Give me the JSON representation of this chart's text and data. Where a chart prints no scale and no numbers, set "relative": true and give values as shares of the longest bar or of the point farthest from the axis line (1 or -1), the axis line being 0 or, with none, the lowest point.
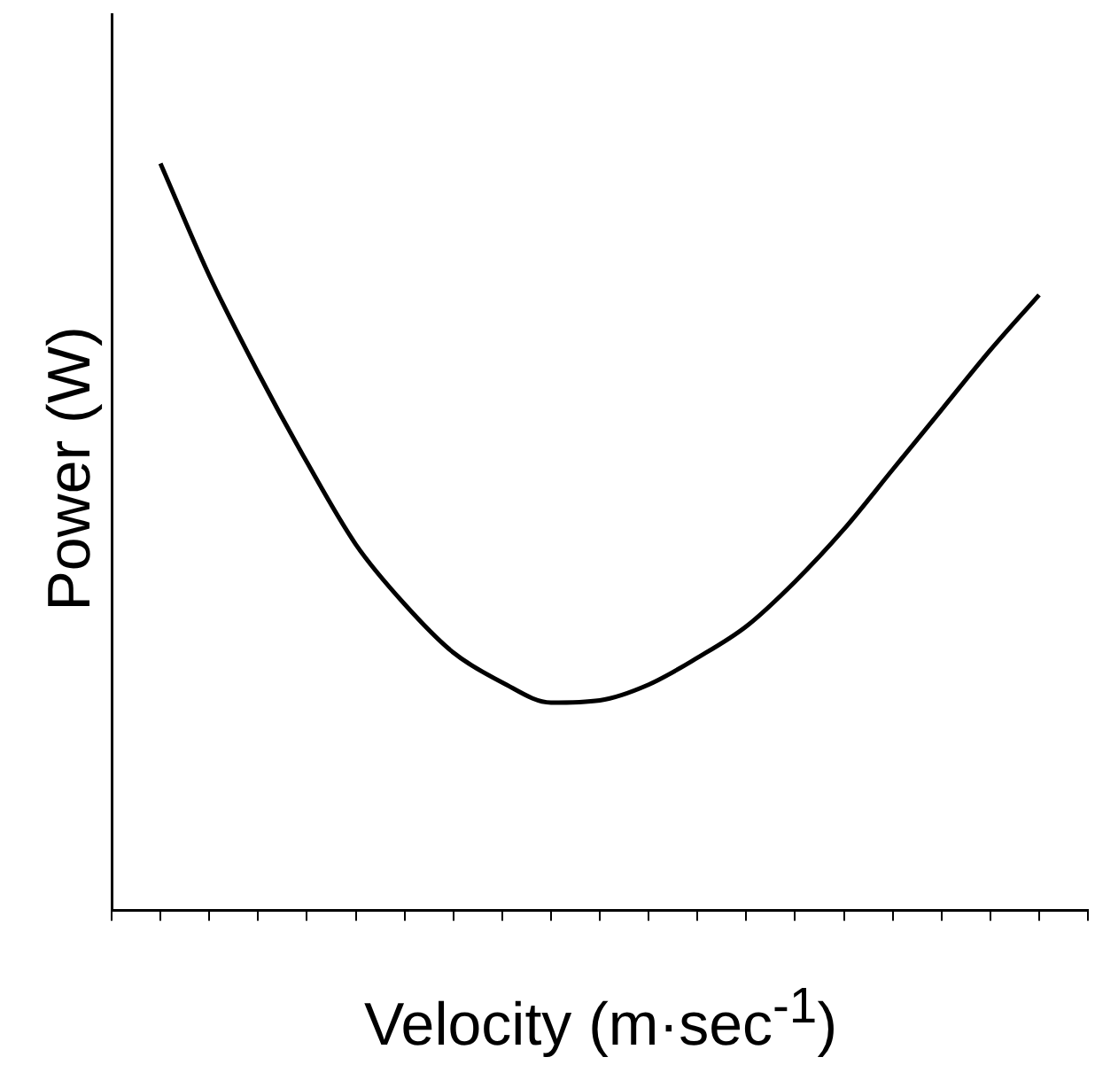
{
  "chart_data": {
    "type": "line",
    "xlabel": "Velocity  (m·sec$^{-1}$)",
    "ylabel": "Power  (W)",
    "relative": true,
    "color": "#000000",
    "marker": "none",
    "grid": false,
    "legend": false,
    "categories": [
      null,
      null,
      null,
      null,
      null,
      null,
      null,
      null,
      null,
      null,
      null,
      null,
      null,
      null,
      null,
      null,
      null,
      null,
      null,
      null,
      null
    ],
    "values": [
      null,
      1,
      0.85,
      0.72,
      0.6,
      0.49,
      0.41,
      0.345,
      0.305,
      0.278,
      0.281,
      0.302,
      0.338,
      0.38,
      0.44,
      0.51,
      0.59,
      0.67,
      0.75,
      0.824,
      null
    ]
  }
}
